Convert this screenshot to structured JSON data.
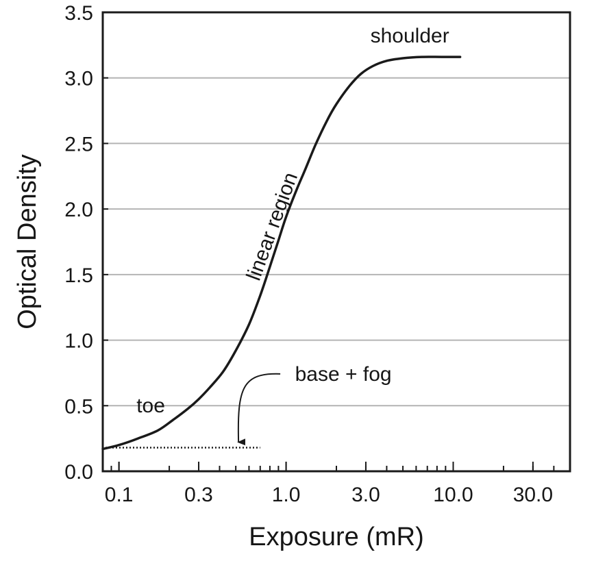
{
  "chart_data": {
    "type": "line",
    "title": "",
    "xlabel": "Exposure (mR)",
    "ylabel": "Optical Density",
    "x_scale": "log",
    "xlim": [
      0.08,
      50
    ],
    "ylim": [
      0,
      3.5
    ],
    "x_ticks": [
      0.1,
      0.3,
      1.0,
      3.0,
      10.0,
      30.0
    ],
    "x_tick_labels": [
      "0.1",
      "0.3",
      "1.0",
      "3.0",
      "10.0",
      "30.0"
    ],
    "y_ticks": [
      0,
      0.5,
      1.0,
      1.5,
      2.0,
      2.5,
      3.0,
      3.5
    ],
    "y_tick_labels": [
      "0.0",
      "0.5",
      "1.0",
      "1.5",
      "2.0",
      "2.5",
      "3.0",
      "3.5"
    ],
    "grid": "horizontal",
    "series": [
      {
        "x": [
          0.08,
          0.1,
          0.13,
          0.17,
          0.21,
          0.26,
          0.3,
          0.35,
          0.42,
          0.5,
          0.6,
          0.7,
          0.8,
          0.9,
          1.0,
          1.15,
          1.3,
          1.5,
          1.75,
          2.0,
          2.4,
          2.8,
          3.3,
          4.0,
          5.0,
          6.5,
          8.5,
          11.0
        ],
        "y": [
          0.17,
          0.2,
          0.25,
          0.31,
          0.39,
          0.48,
          0.55,
          0.64,
          0.76,
          0.92,
          1.12,
          1.34,
          1.56,
          1.76,
          1.94,
          2.14,
          2.3,
          2.49,
          2.67,
          2.8,
          2.94,
          3.03,
          3.09,
          3.13,
          3.15,
          3.16,
          3.16,
          3.16
        ],
        "color": "#1a1a1a"
      }
    ],
    "base_fog": {
      "x": [
        0.08,
        0.7
      ],
      "y": 0.18
    },
    "annotations": [
      {
        "text": "shoulder",
        "x": 5.5,
        "y": 3.27
      },
      {
        "text": "linear region",
        "x": 0.9,
        "y": 1.85,
        "rotation": -70
      },
      {
        "text": "toe",
        "x": 0.155,
        "y": 0.45
      },
      {
        "text": "base + fog",
        "x": 2.2,
        "y": 0.69
      }
    ]
  }
}
